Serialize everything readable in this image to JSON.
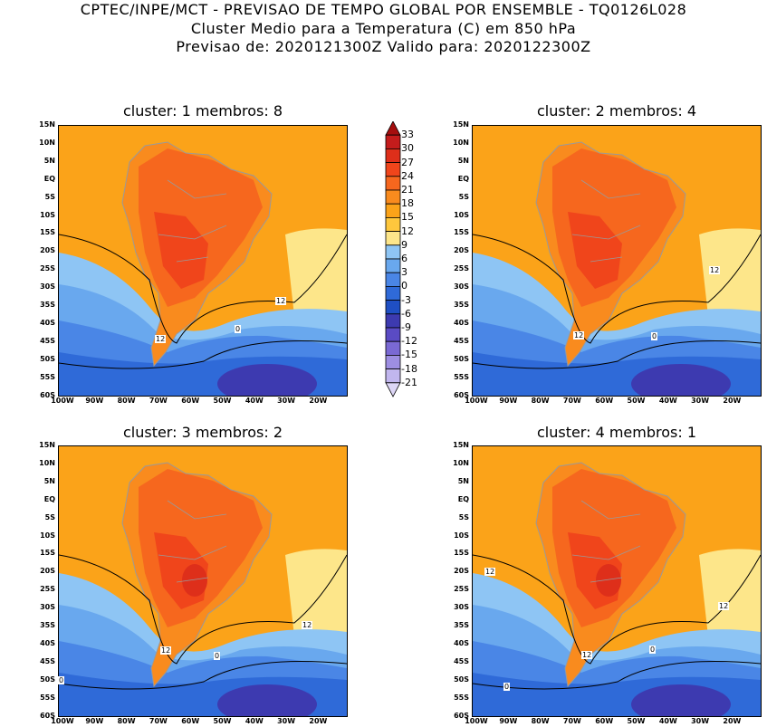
{
  "header": {
    "line1": "CPTEC/INPE/MCT - PREVISAO DE TEMPO GLOBAL POR ENSEMBLE - TQ0126L028",
    "line2": "Cluster Medio para a Temperatura (C) em 850 hPa",
    "line3": "Previsao de: 2020121300Z    Valido para: 2020122300Z"
  },
  "panels": [
    {
      "title": "cluster: 1   membros: 8",
      "labels": [
        "12",
        "12",
        "0"
      ]
    },
    {
      "title": "cluster: 2   membros: 4",
      "labels": [
        "12",
        "12",
        "0"
      ]
    },
    {
      "title": "cluster: 3   membros: 2",
      "labels": [
        "12",
        "12",
        "0",
        "0"
      ]
    },
    {
      "title": "cluster: 4   membros: 1",
      "labels": [
        "12",
        "12",
        "12",
        "0",
        "0"
      ]
    }
  ],
  "lat_ticks": [
    "15N",
    "10N",
    "5N",
    "EQ",
    "5S",
    "10S",
    "15S",
    "20S",
    "25S",
    "30S",
    "35S",
    "40S",
    "45S",
    "50S",
    "55S",
    "60S"
  ],
  "lon_ticks": [
    "100W",
    "90W",
    "80W",
    "70W",
    "60W",
    "50W",
    "40W",
    "30W",
    "20W"
  ],
  "colorbar": {
    "labels": [
      "33",
      "30",
      "27",
      "24",
      "21",
      "18",
      "15",
      "12",
      "9",
      "6",
      "3",
      "0",
      "-3",
      "-6",
      "-9",
      "-12",
      "-15",
      "-18",
      "-21"
    ],
    "colors": [
      "#a50e0e",
      "#c41c1c",
      "#de2f1a",
      "#f0451b",
      "#f6671e",
      "#f98b1e",
      "#fba319",
      "#fec73d",
      "#fde68a",
      "#8ec5f4",
      "#69a8ee",
      "#4a86e6",
      "#2f6ad8",
      "#1f4fc4",
      "#3d3ab0",
      "#5a4bc4",
      "#7a69d4",
      "#9d8ee2",
      "#c1b6ee",
      "#ddd6f6"
    ]
  },
  "legend_colors": {
    "land_outline": "#9a9a9a",
    "contour": "#000000"
  }
}
